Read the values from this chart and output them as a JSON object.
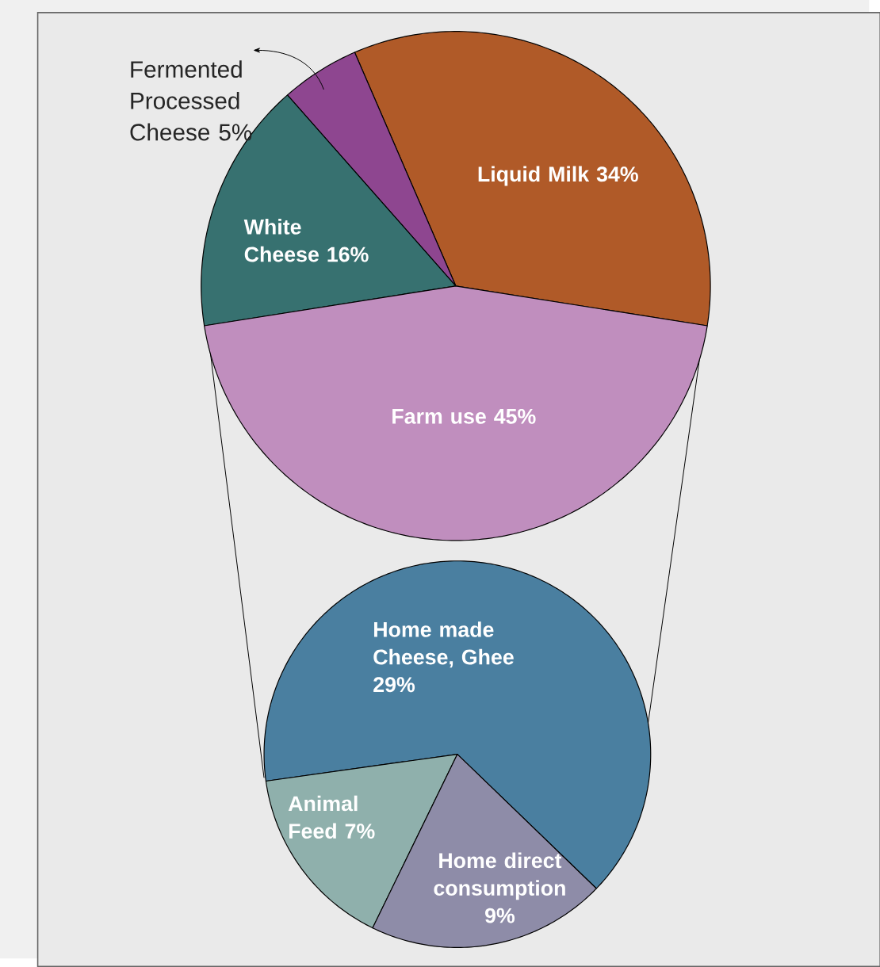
{
  "chart_data": [
    {
      "type": "pie",
      "categories": [
        "Liquid Milk",
        "Fermented Processed Cheese",
        "White Cheese",
        "Farm use"
      ],
      "values": [
        34,
        5,
        16,
        45
      ],
      "value_labels": [
        "34%",
        "5%",
        "16%",
        "45%"
      ],
      "colors": [
        "#b05a28",
        "#8e4690",
        "#377170",
        "#c08ebe"
      ]
    },
    {
      "type": "pie",
      "categories": [
        "Home made Cheese, Ghee",
        "Animal Feed",
        "Home direct consumption"
      ],
      "values": [
        29,
        7,
        9
      ],
      "value_labels": [
        "29%",
        "7%",
        "9%"
      ],
      "colors": [
        "#4a7fa0",
        "#8fb0ac",
        "#8e8ca8"
      ]
    }
  ]
}
